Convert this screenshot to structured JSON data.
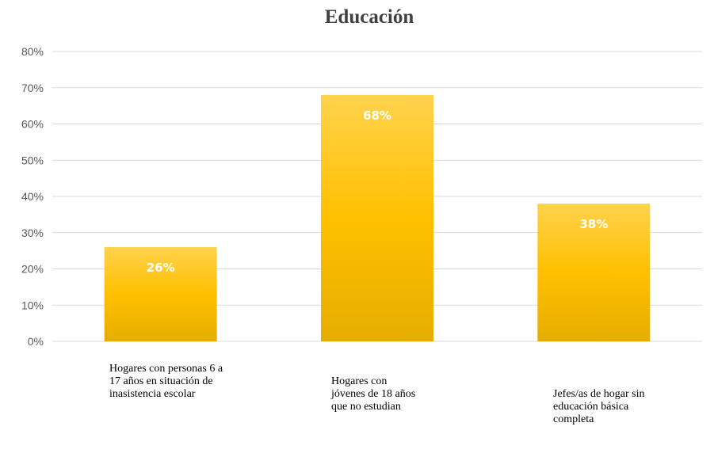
{
  "chart_data": {
    "type": "bar",
    "title": "Educación",
    "xlabel": "",
    "ylabel": "",
    "categories": [
      "Hogares con personas 6 a 17 años en situación de inasistencia escolar",
      "Hogares con jóvenes de 18 años que no estudian",
      "Jefes/as de hogar sin educación básica completa"
    ],
    "values": [
      26,
      68,
      38
    ],
    "data_labels": [
      "26%",
      "68%",
      "38%"
    ],
    "yticks": [
      "0%",
      "10%",
      "20%",
      "30%",
      "40%",
      "50%",
      "60%",
      "70%",
      "80%"
    ],
    "ylim": [
      0,
      80
    ],
    "grid": true,
    "legend": "none",
    "colors": {
      "bar_top": "#ffd24d",
      "bar_mid": "#ffc000",
      "bar_bottom": "#e6ad00"
    }
  }
}
